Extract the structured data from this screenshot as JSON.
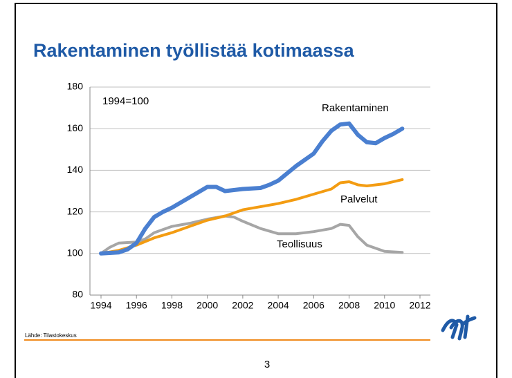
{
  "chart_data": {
    "type": "line",
    "title": "Rakentaminen työllistää kotimaassa",
    "annotation": "1994=100",
    "source": "Lähde: Tilastokeskus",
    "page_number": "3",
    "xlim": [
      1994,
      2012
    ],
    "xticks": [
      1994,
      1996,
      1998,
      2000,
      2002,
      2004,
      2006,
      2008,
      2010,
      2012
    ],
    "ylim": [
      80,
      180
    ],
    "yticks": [
      80,
      100,
      120,
      140,
      160,
      180
    ],
    "grid": true,
    "series": [
      {
        "name": "Rakentaminen",
        "color": "#4a7fd0",
        "x": [
          1994,
          1995,
          1995.5,
          1996,
          1996.5,
          1997,
          1997.5,
          1998,
          1999,
          2000,
          2000.5,
          2001,
          2002,
          2003,
          2003.5,
          2004,
          2005,
          2006,
          2006.5,
          2007,
          2007.5,
          2008,
          2008.5,
          2009,
          2009.5,
          2010,
          2010.5,
          2011
        ],
        "values": [
          100,
          100.5,
          102,
          105,
          112,
          117.5,
          120,
          122,
          127,
          132,
          132,
          130,
          131,
          131.5,
          133,
          135,
          142,
          148,
          154,
          159,
          162,
          162.5,
          157,
          153.5,
          153,
          155.5,
          157.5,
          160
        ]
      },
      {
        "name": "Palvelut",
        "color": "#f39c12",
        "x": [
          1994,
          1995,
          1996,
          1997,
          1998,
          1999,
          2000,
          2001,
          2002,
          2003,
          2004,
          2005,
          2006,
          2007,
          2007.5,
          2008,
          2008.5,
          2009,
          2010,
          2011
        ],
        "values": [
          100,
          101.5,
          104,
          107.5,
          110,
          113,
          116,
          118,
          121,
          122.5,
          124,
          126,
          128.5,
          131,
          134,
          134.5,
          133,
          132.5,
          133.5,
          135.5
        ]
      },
      {
        "name": "Teollisuus",
        "color": "#a6a6a6",
        "x": [
          1994,
          1994.5,
          1995,
          1996,
          1996.5,
          1997,
          1998,
          1999,
          2000,
          2001,
          2001.5,
          2002,
          2003,
          2004,
          2005,
          2006,
          2007,
          2007.5,
          2008,
          2008.5,
          2009,
          2010,
          2011
        ],
        "values": [
          100,
          103,
          105,
          105.5,
          107,
          110,
          113,
          114.5,
          116.5,
          118,
          117.5,
          115.5,
          112,
          109.5,
          109.5,
          110.5,
          112,
          114,
          113.5,
          108,
          104,
          101,
          100.5
        ]
      }
    ]
  }
}
